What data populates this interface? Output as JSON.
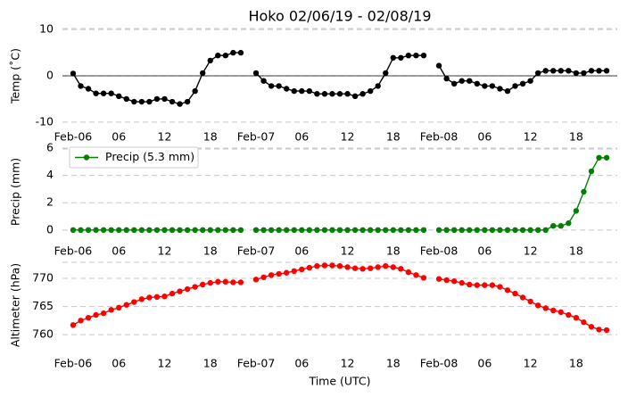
{
  "chart_data": [
    {
      "type": "line",
      "title": "Hoko 02/06/19 - 02/08/19",
      "ylabel": "Temp (˚C)",
      "x": [
        0,
        1,
        2,
        3,
        4,
        5,
        6,
        7,
        8,
        9,
        10,
        11,
        12,
        13,
        14,
        15,
        16,
        17,
        18,
        19,
        20,
        21,
        22,
        23,
        24,
        25,
        26,
        27,
        28,
        29,
        30,
        31,
        32,
        33,
        34,
        35,
        36,
        37,
        38,
        39,
        40,
        41,
        42,
        43,
        44,
        45,
        46,
        47,
        48,
        49,
        50,
        51,
        52,
        53,
        54,
        55,
        56,
        57,
        58,
        59,
        60,
        61,
        62,
        63,
        64,
        65,
        66,
        67,
        68,
        69,
        70
      ],
      "values": [
        0.5,
        -2.2,
        -2.8,
        -3.8,
        -3.8,
        -3.8,
        -4.4,
        -5.0,
        -5.6,
        -5.6,
        -5.6,
        -5.0,
        -5.0,
        -5.6,
        -6.1,
        -5.6,
        -3.3,
        0.6,
        3.3,
        4.4,
        4.4,
        5.0,
        5.0,
        null,
        0.6,
        -1.1,
        -2.2,
        -2.2,
        -2.8,
        -3.3,
        -3.3,
        -3.3,
        -3.9,
        -3.9,
        -3.9,
        -3.9,
        -3.9,
        -4.4,
        -3.9,
        -3.3,
        -2.2,
        0.6,
        3.9,
        3.9,
        4.4,
        4.4,
        4.4,
        null,
        2.2,
        -0.6,
        -1.7,
        -1.1,
        -1.1,
        -1.7,
        -2.2,
        -2.2,
        -2.8,
        -3.3,
        -2.2,
        -1.7,
        -1.1,
        0.6,
        1.1,
        1.1,
        1.1,
        1.1,
        0.6,
        0.6,
        1.1,
        1.1,
        1.1
      ],
      "color": "#000000",
      "zero_line": true,
      "grid": true,
      "xlim": [
        -1.4,
        71.4
      ],
      "ylim": [
        -11,
        11
      ],
      "yticks": [
        -10,
        0,
        10
      ],
      "xticks": [
        {
          "value": 0,
          "label": "Feb-06"
        },
        {
          "value": 6,
          "label": "06"
        },
        {
          "value": 12,
          "label": "12"
        },
        {
          "value": 18,
          "label": "18"
        },
        {
          "value": 24,
          "label": "Feb-07"
        },
        {
          "value": 30,
          "label": "06"
        },
        {
          "value": 36,
          "label": "12"
        },
        {
          "value": 42,
          "label": "18"
        },
        {
          "value": 48,
          "label": "Feb-08"
        },
        {
          "value": 54,
          "label": "06"
        },
        {
          "value": 60,
          "label": "12"
        },
        {
          "value": 66,
          "label": "18"
        }
      ]
    },
    {
      "type": "line",
      "ylabel": "Precip (mm)",
      "x": [
        0,
        1,
        2,
        3,
        4,
        5,
        6,
        7,
        8,
        9,
        10,
        11,
        12,
        13,
        14,
        15,
        16,
        17,
        18,
        19,
        20,
        21,
        22,
        23,
        24,
        25,
        26,
        27,
        28,
        29,
        30,
        31,
        32,
        33,
        34,
        35,
        36,
        37,
        38,
        39,
        40,
        41,
        42,
        43,
        44,
        45,
        46,
        47,
        48,
        49,
        50,
        51,
        52,
        53,
        54,
        55,
        56,
        57,
        58,
        59,
        60,
        61,
        62,
        63,
        64,
        65,
        66,
        67,
        68,
        69,
        70
      ],
      "series": [
        {
          "name": "Precip (5.3 mm)",
          "color": "#008000",
          "values": [
            0,
            0,
            0,
            0,
            0,
            0,
            0,
            0,
            0,
            0,
            0,
            0,
            0,
            0,
            0,
            0,
            0,
            0,
            0,
            0,
            0,
            0,
            0,
            null,
            0,
            0,
            0,
            0,
            0,
            0,
            0,
            0,
            0,
            0,
            0,
            0,
            0,
            0,
            0,
            0,
            0,
            0,
            0,
            0,
            0,
            0,
            0,
            null,
            0,
            0,
            0,
            0,
            0,
            0,
            0,
            0,
            0,
            0,
            0,
            0,
            0,
            0,
            0,
            0.3,
            0.3,
            0.5,
            1.4,
            2.8,
            4.3,
            5.3,
            5.3
          ]
        }
      ],
      "legend": "upper left",
      "grid": true,
      "xlim": [
        -1.4,
        71.4
      ],
      "ylim": [
        -0.6,
        6.2
      ],
      "yticks": [
        0,
        2,
        4,
        6
      ],
      "xticks": [
        {
          "value": 0,
          "label": "Feb-06"
        },
        {
          "value": 6,
          "label": "06"
        },
        {
          "value": 12,
          "label": "12"
        },
        {
          "value": 18,
          "label": "18"
        },
        {
          "value": 24,
          "label": "Feb-07"
        },
        {
          "value": 30,
          "label": "06"
        },
        {
          "value": 36,
          "label": "12"
        },
        {
          "value": 42,
          "label": "18"
        },
        {
          "value": 48,
          "label": "Feb-08"
        },
        {
          "value": 54,
          "label": "06"
        },
        {
          "value": 60,
          "label": "12"
        },
        {
          "value": 66,
          "label": "18"
        }
      ]
    },
    {
      "type": "line",
      "ylabel": "Altimeter (hPa)",
      "xlabel": "Time (UTC)",
      "x": [
        0,
        1,
        2,
        3,
        4,
        5,
        6,
        7,
        8,
        9,
        10,
        11,
        12,
        13,
        14,
        15,
        16,
        17,
        18,
        19,
        20,
        21,
        22,
        23,
        24,
        25,
        26,
        27,
        28,
        29,
        30,
        31,
        32,
        33,
        34,
        35,
        36,
        37,
        38,
        39,
        40,
        41,
        42,
        43,
        44,
        45,
        46,
        47,
        48,
        49,
        50,
        51,
        52,
        53,
        54,
        55,
        56,
        57,
        58,
        59,
        60,
        61,
        62,
        63,
        64,
        65,
        66,
        67,
        68,
        69,
        70
      ],
      "values": [
        761.7,
        762.5,
        763.0,
        763.5,
        763.8,
        764.4,
        764.8,
        765.3,
        765.8,
        766.3,
        766.6,
        766.7,
        766.8,
        767.3,
        767.7,
        768.1,
        768.5,
        768.9,
        769.2,
        769.4,
        769.4,
        769.3,
        769.3,
        null,
        769.8,
        770.2,
        770.6,
        770.8,
        771.0,
        771.3,
        771.6,
        771.9,
        772.2,
        772.3,
        772.3,
        772.2,
        772.0,
        771.8,
        771.7,
        771.8,
        772.0,
        772.2,
        772.0,
        771.7,
        771.1,
        770.6,
        770.1,
        null,
        769.9,
        769.7,
        769.5,
        769.2,
        768.9,
        768.8,
        768.8,
        768.8,
        768.5,
        767.9,
        767.3,
        766.6,
        765.9,
        765.2,
        764.7,
        764.3,
        764.0,
        763.5,
        763.0,
        762.2,
        761.4,
        760.9,
        760.8
      ],
      "color": "#ff0000",
      "grid": true,
      "xlim": [
        -1.4,
        71.4
      ],
      "ylim": [
        757,
        773.5
      ],
      "yticks": [
        760,
        765,
        770
      ],
      "xticks": [
        {
          "value": 0,
          "label": "Feb-06"
        },
        {
          "value": 6,
          "label": "06"
        },
        {
          "value": 12,
          "label": "12"
        },
        {
          "value": 18,
          "label": "18"
        },
        {
          "value": 24,
          "label": "Feb-07"
        },
        {
          "value": 30,
          "label": "06"
        },
        {
          "value": 36,
          "label": "12"
        },
        {
          "value": 42,
          "label": "18"
        },
        {
          "value": 48,
          "label": "Feb-08"
        },
        {
          "value": 54,
          "label": "06"
        },
        {
          "value": 60,
          "label": "12"
        },
        {
          "value": 66,
          "label": "18"
        }
      ]
    }
  ]
}
